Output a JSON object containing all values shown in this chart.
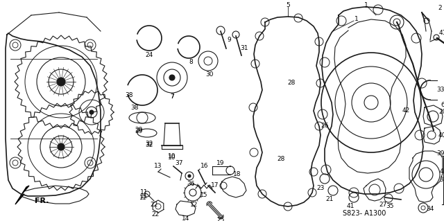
{
  "background_color": "#ffffff",
  "diagram_code": "S823- A1300",
  "fr_label": "FR.",
  "line_color": "#1a1a1a",
  "label_fontsize": 6.5,
  "code_fontsize": 7,
  "fr_fontsize": 8,
  "figw": 6.4,
  "figh": 3.19,
  "dpi": 100
}
